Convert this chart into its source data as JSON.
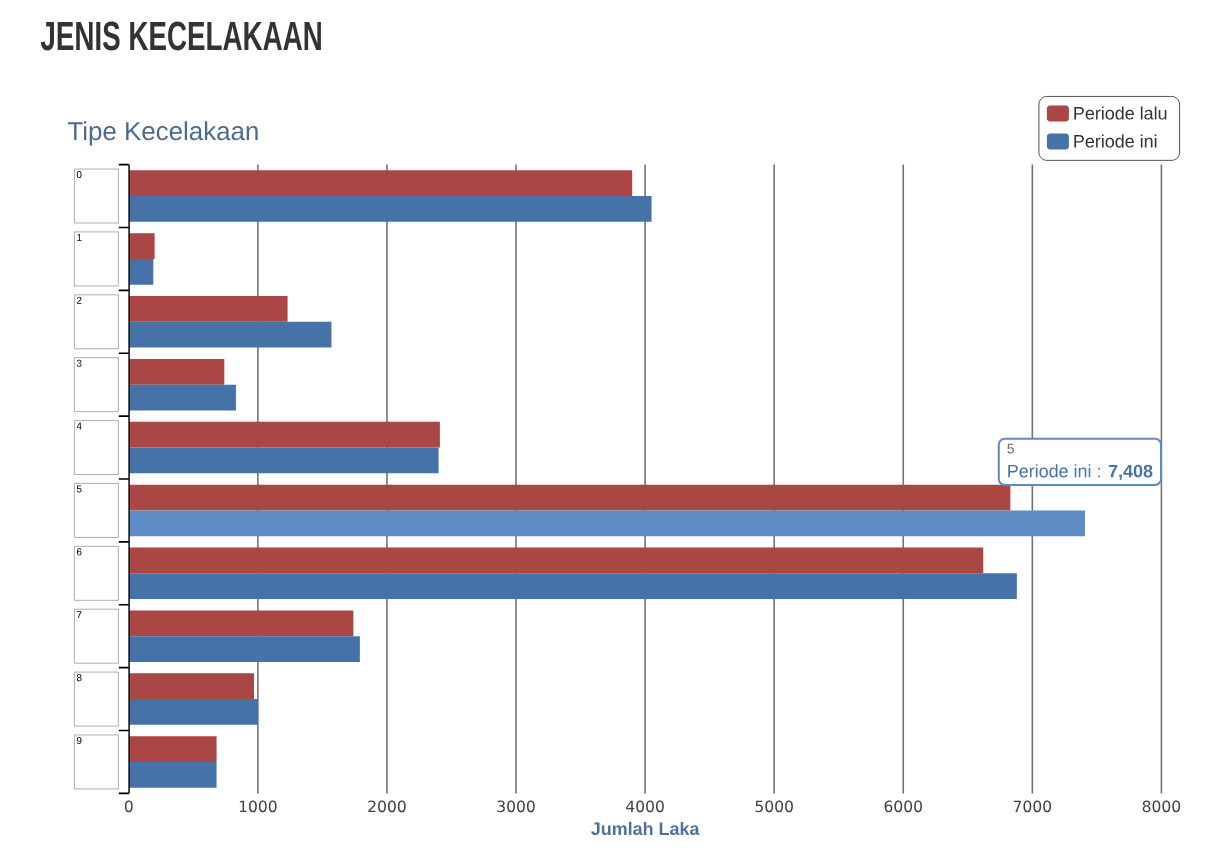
{
  "chart_data": {
    "type": "bar",
    "orientation": "horizontal",
    "title": "JENIS KECELAKAAN",
    "subtitle": "Tipe Kecelakaan",
    "xlabel": "Jumlah Laka",
    "categories": [
      "0",
      "1",
      "2",
      "3",
      "4",
      "5",
      "6",
      "7",
      "8",
      "9"
    ],
    "series": [
      {
        "name": "Periode lalu",
        "color": "#aa4643",
        "values": [
          3900,
          200,
          1230,
          740,
          2410,
          6830,
          6620,
          1740,
          970,
          680
        ]
      },
      {
        "name": "Periode ini",
        "color": "#4572a7",
        "colors": [
          "#4572a7",
          "#4572a7",
          "#4572a7",
          "#4572a7",
          "#4572a7",
          "#5d8cc4",
          "#4572a7",
          "#4572a7",
          "#4572a7",
          "#4572a7"
        ],
        "values": [
          4050,
          190,
          1570,
          830,
          2400,
          7408,
          6880,
          1790,
          1000,
          680
        ]
      }
    ],
    "xlim": [
      0,
      8000
    ],
    "xticks": [
      0,
      1000,
      2000,
      3000,
      4000,
      5000,
      6000,
      7000,
      8000
    ],
    "grid": "x",
    "legend": "top right",
    "annotations": [
      "5",
      "Periode ini : **7,408**"
    ]
  }
}
